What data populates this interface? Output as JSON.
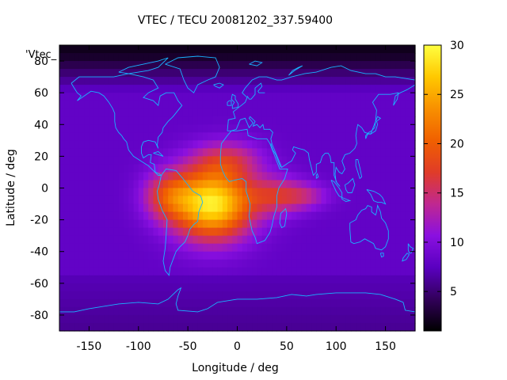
{
  "chart_data": {
    "type": "heatmap",
    "title": "VTEC / TECU 20081202_337.59400",
    "xlabel": "Longitude / deg",
    "ylabel": "Latitude / deg",
    "key_label": "'Vtec_",
    "xlim": [
      -180,
      180
    ],
    "ylim": [
      -90,
      90
    ],
    "x_ticks": [
      -150,
      -100,
      -50,
      0,
      50,
      100,
      150
    ],
    "y_ticks": [
      -80,
      -60,
      -40,
      -20,
      0,
      20,
      40,
      60,
      80
    ],
    "colorbar": {
      "range": [
        1,
        30
      ],
      "ticks": [
        5,
        10,
        15,
        20,
        25,
        30
      ],
      "palette": [
        "#000000",
        "#32005a",
        "#5a00c0",
        "#8a10e0",
        "#c02890",
        "#e03c28",
        "#f06000",
        "#f89000",
        "#ffc800",
        "#ffff40"
      ]
    },
    "coastline_color": "#19b4ff",
    "field_model": {
      "background_vtec": 8,
      "anomalies": [
        {
          "lon": -25,
          "lat": -10,
          "amp": 21,
          "lon_width": 40,
          "lat_width": 22
        },
        {
          "lon": -70,
          "lat": -5,
          "amp": 8,
          "lon_width": 25,
          "lat_width": 15
        },
        {
          "lon": 40,
          "lat": -5,
          "amp": 7,
          "lon_width": 30,
          "lat_width": 12
        },
        {
          "lon": -10,
          "lat": 18,
          "amp": 6,
          "lon_width": 35,
          "lat_width": 12
        },
        {
          "lon": 70,
          "lat": -5,
          "amp": 4,
          "lon_width": 25,
          "lat_width": 8
        }
      ],
      "high_latitude_minimum": 2,
      "south_latitude_minimum": 6
    }
  }
}
